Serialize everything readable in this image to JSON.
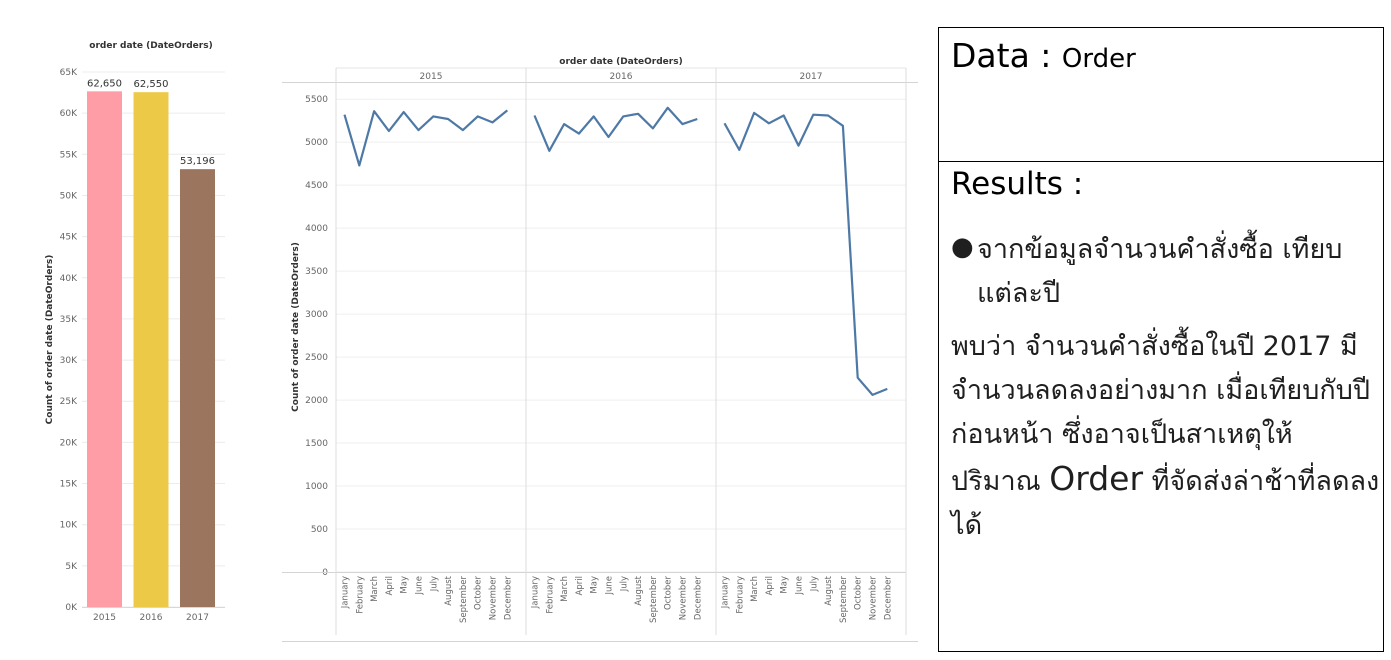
{
  "chart_data": [
    {
      "type": "bar",
      "title": "order date (DateOrders)",
      "xlabel": "",
      "ylabel": "Count of order date (DateOrders)",
      "categories": [
        "2015",
        "2016",
        "2017"
      ],
      "values": [
        62650,
        62550,
        53196
      ],
      "value_labels": [
        "62,650",
        "62,550",
        "53,196"
      ],
      "colors": [
        "#FF9DA7",
        "#EDC948",
        "#9C755F"
      ],
      "ylim": [
        0,
        65000
      ],
      "yticks": [
        0,
        5000,
        10000,
        15000,
        20000,
        25000,
        30000,
        35000,
        40000,
        45000,
        50000,
        55000,
        60000,
        65000
      ],
      "ytick_labels": [
        "0K",
        "5K",
        "10K",
        "15K",
        "20K",
        "25K",
        "30K",
        "35K",
        "40K",
        "45K",
        "50K",
        "55K",
        "60K",
        "65K"
      ],
      "grid": true,
      "legend": "none"
    },
    {
      "type": "line",
      "title": "order date (DateOrders)",
      "xlabel": "",
      "ylabel": "Count of order date (DateOrders)",
      "panels": [
        "2015",
        "2016",
        "2017"
      ],
      "months": [
        "January",
        "February",
        "March",
        "April",
        "May",
        "June",
        "July",
        "August",
        "September",
        "October",
        "November",
        "December"
      ],
      "series": [
        {
          "panel": "2015",
          "values": [
            5320,
            4730,
            5360,
            5130,
            5350,
            5140,
            5300,
            5270,
            5140,
            5300,
            5230,
            5370
          ]
        },
        {
          "panel": "2016",
          "values": [
            5310,
            4900,
            5210,
            5100,
            5300,
            5060,
            5300,
            5330,
            5160,
            5400,
            5210,
            5270
          ]
        },
        {
          "panel": "2017",
          "values": [
            5220,
            4910,
            5340,
            5220,
            5310,
            4960,
            5320,
            5310,
            5190,
            2260,
            2060,
            2130
          ]
        }
      ],
      "line_color": "#4E79A7",
      "ylim": [
        0,
        5700
      ],
      "yticks": [
        0,
        500,
        1000,
        1500,
        2000,
        2500,
        3000,
        3500,
        4000,
        4500,
        5000,
        5500
      ],
      "grid": true,
      "legend": "none"
    }
  ],
  "results": {
    "data_label": "Data :",
    "data_value": "Order",
    "results_title": "Results :",
    "bullet": "จากข้อมูลจำนวนคำสั่งซื้อ เทียบแต่ละปี",
    "paragraph_prefix": "พบว่า จำนวนคำสั่งซื้อในปี 2017 มีจำนวนลดลงอย่างมาก เมื่อเทียบกับปีก่อนหน้า ซึ่งอาจเป็นสาเหตุให้ปริมาณ ",
    "paragraph_highlight": "Order",
    "paragraph_suffix": " ที่จัดส่งล่าช้าที่ลดลงได้"
  }
}
